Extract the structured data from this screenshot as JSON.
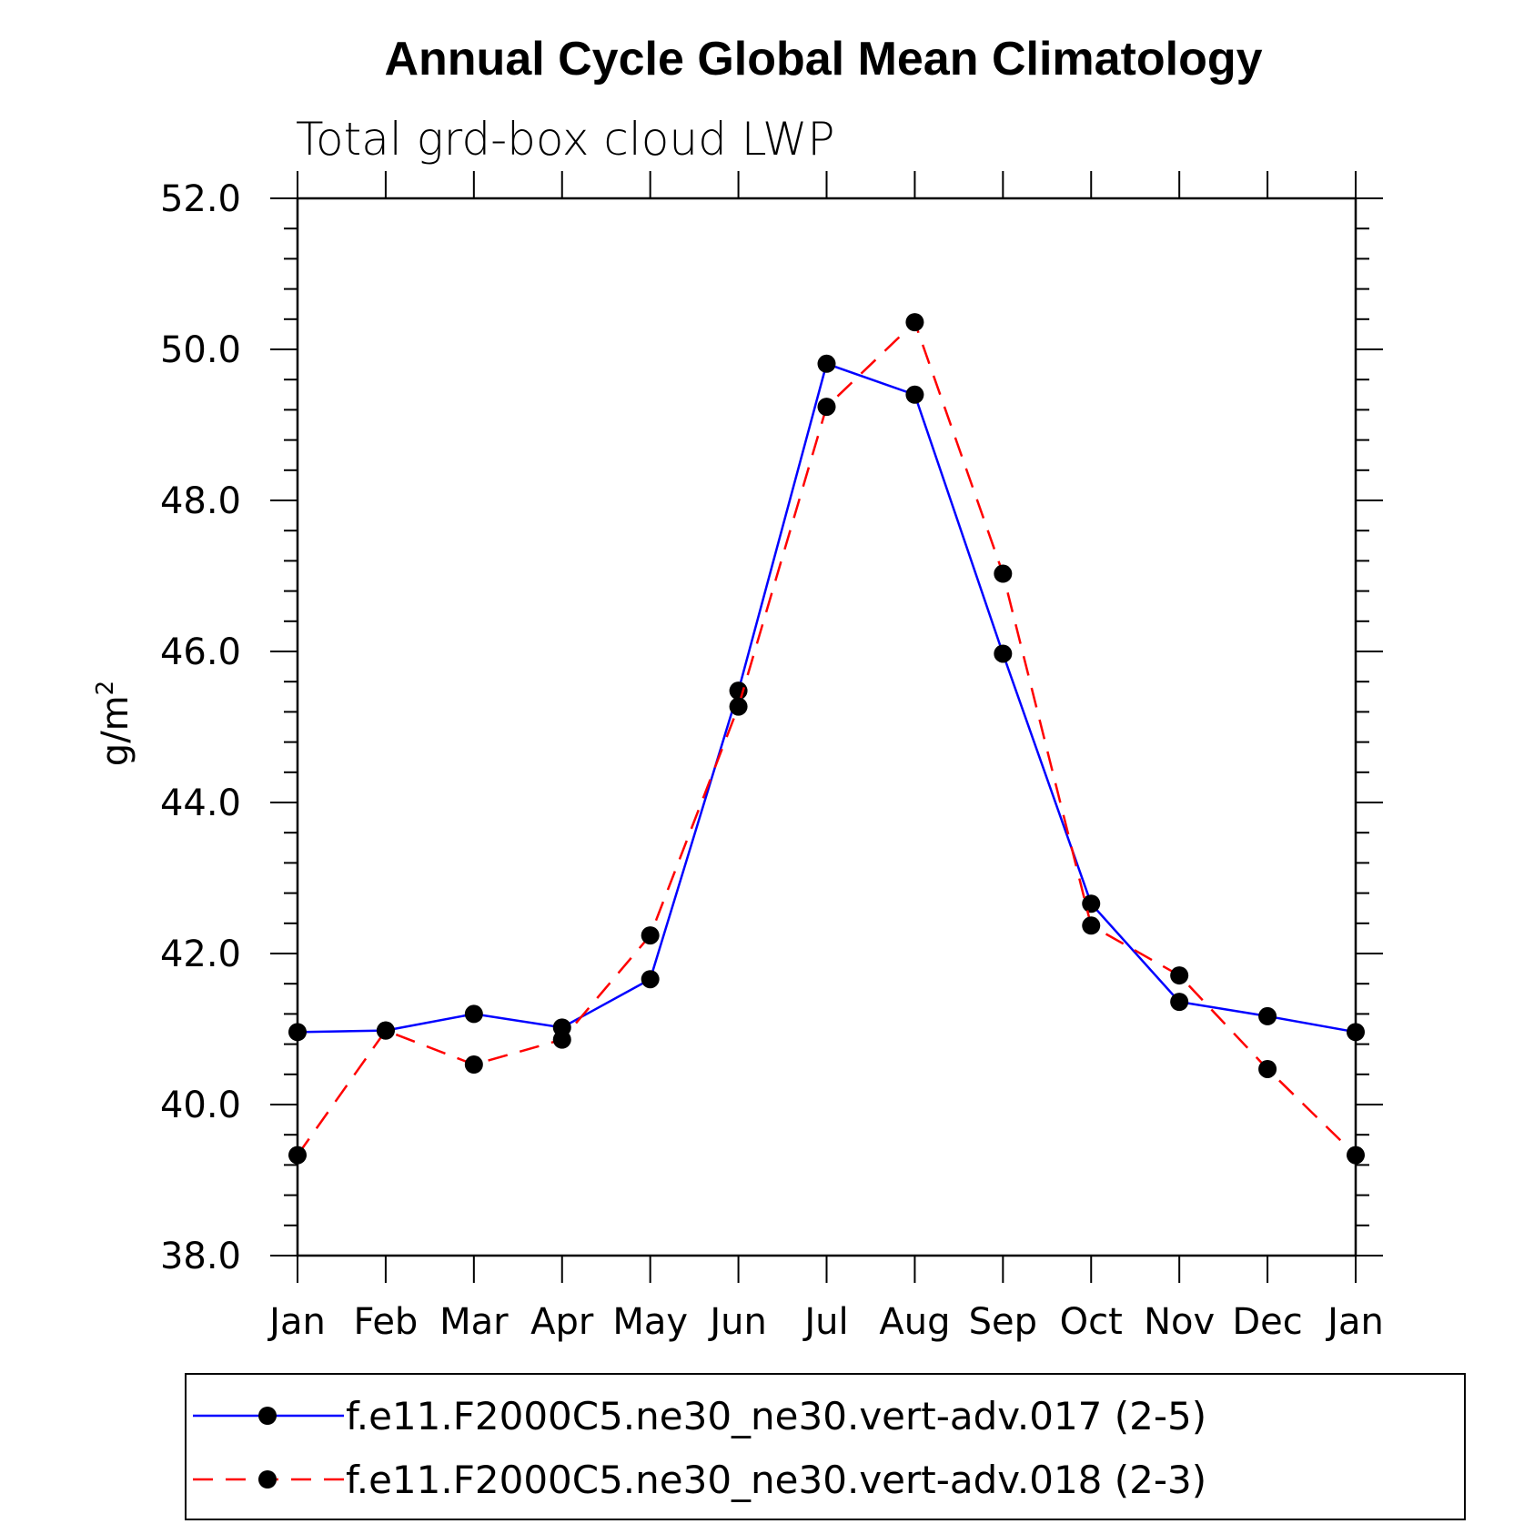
{
  "chart_data": {
    "type": "line",
    "title": "Annual Cycle Global Mean Climatology",
    "subtitle": "Total grd-box cloud LWP",
    "ylabel": "g/m",
    "ylabel_sup": "2",
    "categories": [
      "Jan",
      "Feb",
      "Mar",
      "Apr",
      "May",
      "Jun",
      "Jul",
      "Aug",
      "Sep",
      "Oct",
      "Nov",
      "Dec",
      "Jan"
    ],
    "ylim": [
      38.0,
      52.0
    ],
    "yticks": [
      "38.0",
      "40.0",
      "42.0",
      "44.0",
      "46.0",
      "48.0",
      "50.0",
      "52.0"
    ],
    "grid": false,
    "legend_position": "bottom",
    "series": [
      {
        "name": "f.e11.F2000C5.ne30_ne30.vert-adv.017 (2-5)",
        "color": "#0000ff",
        "dash": "solid",
        "marker": "filled-circle",
        "values": [
          40.96,
          40.98,
          41.2,
          41.02,
          41.66,
          45.48,
          49.81,
          49.4,
          45.97,
          42.66,
          41.36,
          41.17,
          40.96
        ]
      },
      {
        "name": "f.e11.F2000C5.ne30_ne30.vert-adv.018 (2-3)",
        "color": "#ff0000",
        "dash": "dashed",
        "marker": "filled-circle",
        "values": [
          39.33,
          40.98,
          40.53,
          40.86,
          42.24,
          45.27,
          49.24,
          50.36,
          47.03,
          42.37,
          41.71,
          40.47,
          39.33
        ]
      }
    ]
  }
}
